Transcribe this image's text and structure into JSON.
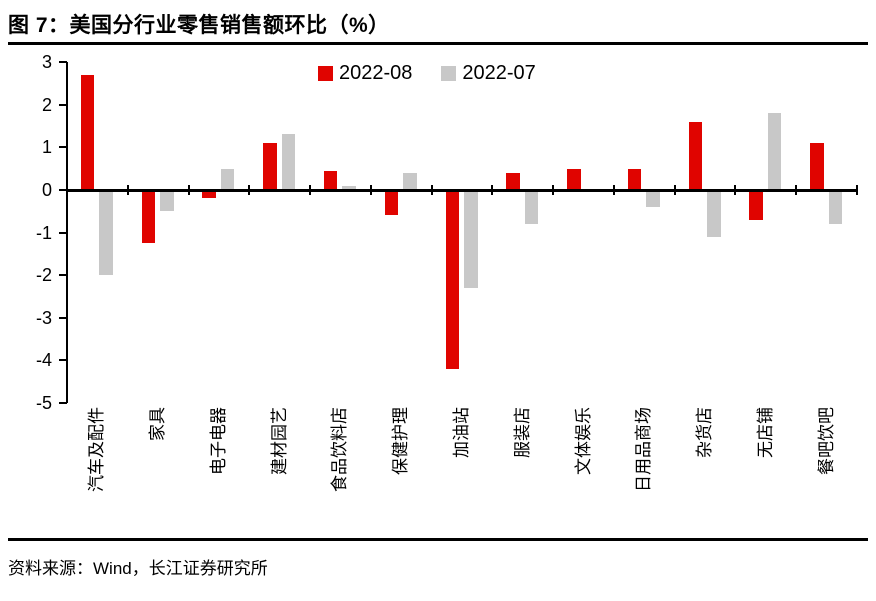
{
  "page": {
    "title": "图 7：美国分行业零售销售额环比（%）",
    "source": "资料来源：Wind，长江证券研究所"
  },
  "colors": {
    "series_red": "#e00400",
    "series_gray": "#c8c8c8",
    "axis": "#000000"
  },
  "chart_data": {
    "type": "bar",
    "title": "图 7：美国分行业零售销售额环比（%）",
    "categories": [
      "汽车及配件",
      "家具",
      "电子电器",
      "建材园艺",
      "食品饮料店",
      "保健护理",
      "加油站",
      "服装店",
      "文体娱乐",
      "日用品商场",
      "杂货店",
      "无店铺",
      "餐吧饮吧"
    ],
    "series": [
      {
        "name": "2022-08",
        "color": "#e00400",
        "values": [
          2.7,
          -1.25,
          -0.2,
          1.1,
          0.45,
          -0.6,
          -4.2,
          0.4,
          0.5,
          0.5,
          1.6,
          -0.7,
          1.1
        ]
      },
      {
        "name": "2022-07",
        "color": "#c8c8c8",
        "values": [
          -2.0,
          -0.5,
          0.5,
          1.3,
          0.1,
          0.4,
          -2.3,
          -0.8,
          0.0,
          -0.4,
          -1.1,
          1.8,
          -0.8
        ]
      }
    ],
    "xlabel": "",
    "ylabel": "",
    "ylim": [
      -5,
      3
    ],
    "yticks": [
      3,
      2,
      1,
      0,
      -1,
      -2,
      -3,
      -4,
      -5
    ],
    "grid": false,
    "legend_position": "top-center",
    "bar_orientation": "vertical"
  }
}
